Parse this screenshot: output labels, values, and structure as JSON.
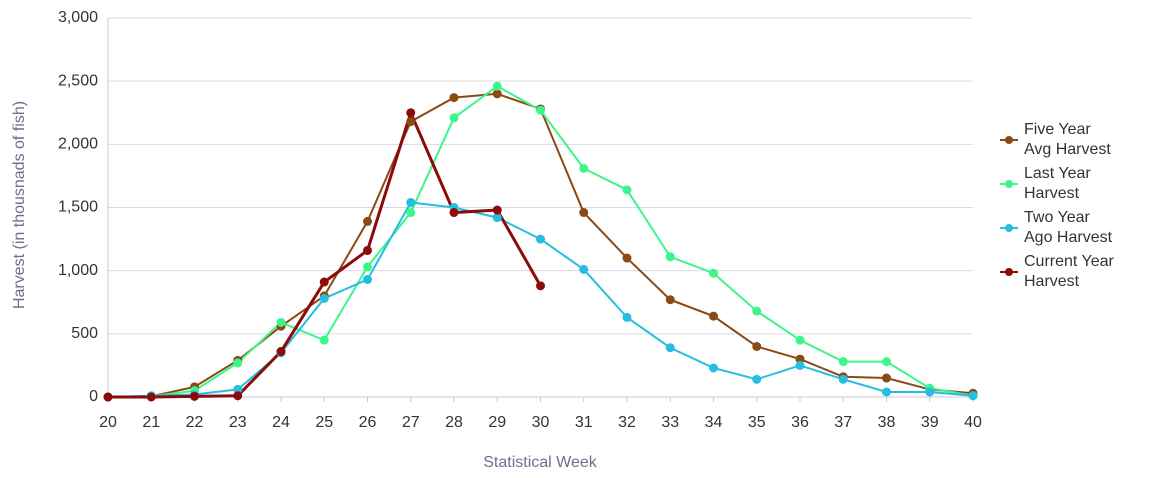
{
  "chart_data": {
    "type": "line",
    "y_label": "Harvest (in thousnads of fish)",
    "x_label": "Statistical Week",
    "x": [
      20,
      21,
      22,
      23,
      24,
      25,
      26,
      27,
      28,
      29,
      30,
      31,
      32,
      33,
      34,
      35,
      36,
      37,
      38,
      39,
      40
    ],
    "xlim": [
      20,
      40
    ],
    "xticks": [
      20,
      21,
      22,
      23,
      24,
      25,
      26,
      27,
      28,
      29,
      30,
      31,
      32,
      33,
      34,
      35,
      36,
      37,
      38,
      39,
      40
    ],
    "ylim": [
      0,
      3000
    ],
    "yticks": [
      0,
      500,
      {
        "value": 1000,
        "label": "1,000"
      },
      {
        "value": 1500,
        "label": "1,500"
      },
      {
        "value": 2000,
        "label": "2,000"
      },
      {
        "value": 2500,
        "label": "2,500"
      },
      {
        "value": 3000,
        "label": "3,000"
      }
    ],
    "grid": true,
    "legend": "right",
    "series": [
      {
        "name": "Five Year Avg Harvest",
        "color": "#8b4a13",
        "values": [
          0,
          5,
          80,
          290,
          560,
          800,
          1390,
          2180,
          2370,
          2400,
          2280,
          1460,
          1100,
          770,
          640,
          400,
          300,
          160,
          150,
          60,
          30
        ]
      },
      {
        "name": "Last Year Harvest",
        "color": "#3df58a",
        "values": [
          0,
          5,
          50,
          270,
          590,
          450,
          1030,
          1460,
          2210,
          2460,
          2270,
          1810,
          1640,
          1110,
          980,
          680,
          450,
          280,
          280,
          70,
          10
        ]
      },
      {
        "name": "Two Year Ago Harvest",
        "color": "#27bde0",
        "values": [
          0,
          10,
          20,
          60,
          350,
          780,
          930,
          1540,
          1500,
          1420,
          1250,
          1010,
          630,
          390,
          230,
          140,
          250,
          140,
          40,
          40,
          10
        ]
      },
      {
        "name": "Current Year Harvest",
        "color": "#8b0a0a",
        "values": [
          0,
          0,
          5,
          10,
          360,
          910,
          1160,
          2250,
          1460,
          1480,
          880,
          null,
          null,
          null,
          null,
          null,
          null,
          null,
          null,
          null,
          null
        ]
      }
    ]
  }
}
